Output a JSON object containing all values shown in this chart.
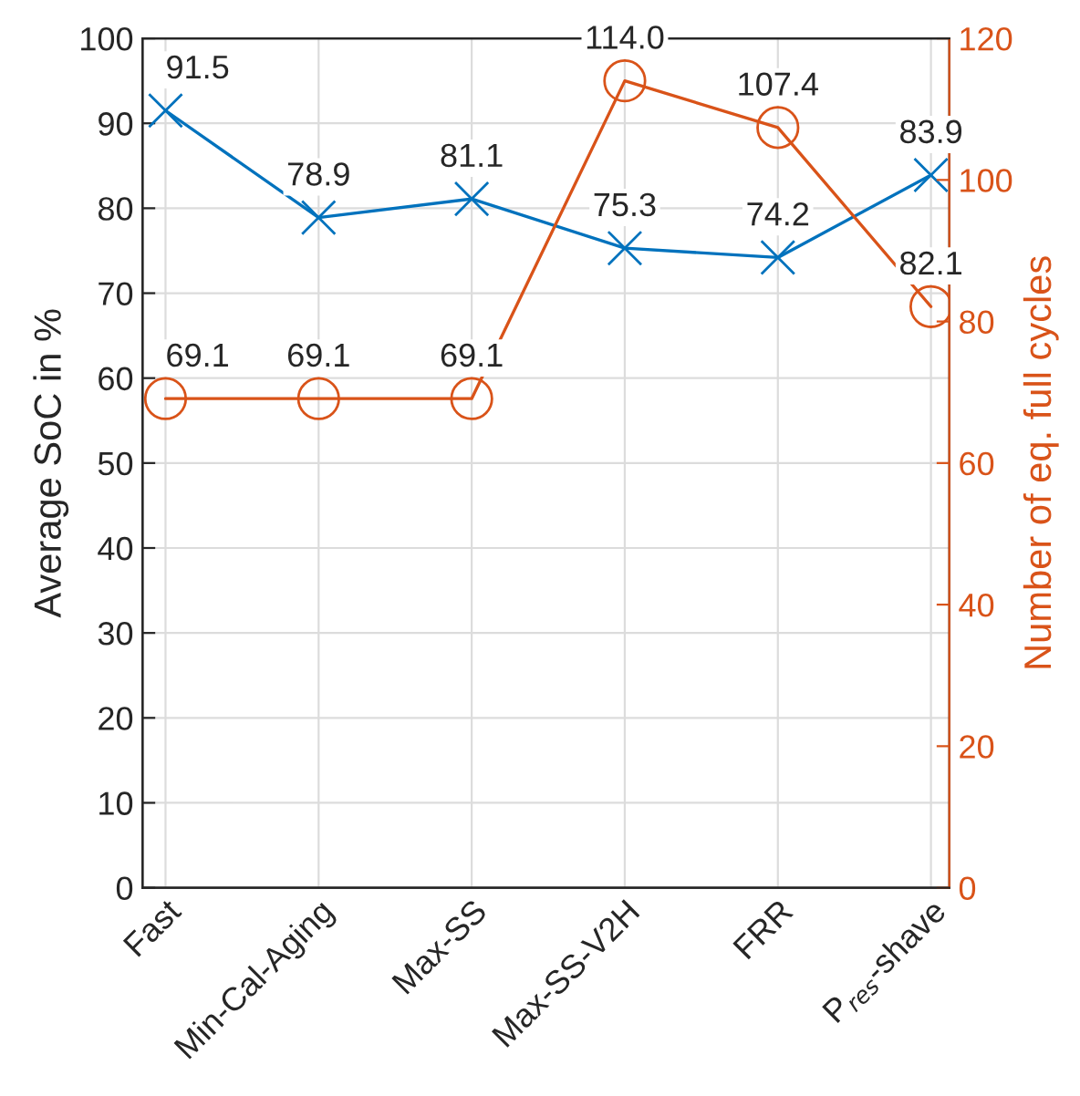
{
  "chart_data": {
    "type": "line",
    "categories": [
      "Fast",
      "Min-Cal-Aging",
      "Max-SS",
      "Max-SS-V2H",
      "FRR",
      "P$_{res}$-shave"
    ],
    "ylabel": "Average SoC in %",
    "y2label": "Number of eq. full cycles",
    "ylim": [
      0,
      100
    ],
    "yticks": [
      0,
      10,
      20,
      30,
      40,
      50,
      60,
      70,
      80,
      90,
      100
    ],
    "y2lim": [
      0,
      120
    ],
    "y2ticks": [
      0,
      20,
      40,
      60,
      80,
      100,
      120
    ],
    "grid": true,
    "legend": false,
    "series": [
      {
        "color": "#0072bd",
        "marker": "cross",
        "line_style": "solid",
        "values": [
          91.5,
          78.9,
          81.1,
          75.3,
          74.2,
          83.9
        ],
        "value_labels": [
          "91.5",
          "78.9",
          "81.1",
          "75.3",
          "74.2",
          "83.9"
        ]
      },
      {
        "color": "#d95319",
        "marker": "circle",
        "line_style": "solid",
        "axis": "y2",
        "values": [
          69.1,
          69.1,
          69.1,
          114.0,
          107.4,
          82.1
        ],
        "value_labels": [
          "69.1",
          "69.1",
          "69.1",
          "114.0",
          "107.4",
          "82.1"
        ]
      }
    ]
  }
}
